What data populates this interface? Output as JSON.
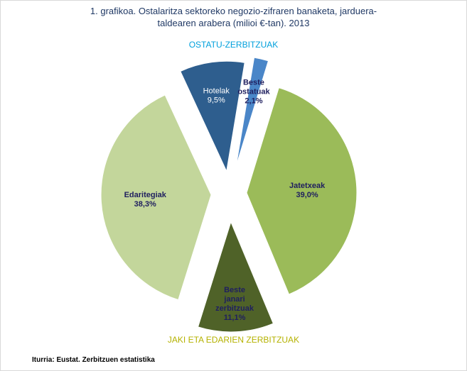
{
  "title_line1": "1. grafikoa. Ostalaritza sektoreko negozio-zifraren banaketa, jarduera-",
  "title_line2": "taldearen arabera (milioi €-tan). 2013",
  "group_top": "OSTATU-ZERBITZUAK",
  "group_bottom": "JAKI ETA EDARIEN ZERBITZUAK",
  "source": "Iturria: Eustat. Zerbitzuen estatistika",
  "colors": {
    "jatetxeak": "#9bbb59",
    "beste_janari": "#4f6228",
    "edaritegiak": "#c3d69b",
    "hotelak": "#2e5e8e",
    "beste_ostatuak": "#4a86c8",
    "label_dark": "#1f1f5f",
    "label_light": "#ffffff"
  },
  "chart_data": {
    "type": "pie",
    "title": "1. grafikoa. Ostalaritza sektoreko negozio-zifraren banaketa, jarduera-taldearen arabera (milioi €-tan). 2013",
    "groups": [
      "OSTATU-ZERBITZUAK",
      "JAKI ETA EDARIEN ZERBITZUAK"
    ],
    "slices": [
      {
        "lines": [
          "Jatetxeak",
          "39,0%"
        ],
        "value": 39.0,
        "color": "#9bbb59"
      },
      {
        "lines": [
          "Beste",
          "janari",
          "zerbitzuak",
          "11,1%"
        ],
        "value": 11.1,
        "color": "#4f6228"
      },
      {
        "lines": [
          "Edaritegiak",
          "38,3%"
        ],
        "value": 38.3,
        "color": "#c3d69b"
      },
      {
        "lines": [
          "Hotelak",
          "9,5%"
        ],
        "value": 9.5,
        "color": "#2e5e8e"
      },
      {
        "lines": [
          "Beste",
          "ostatuak",
          "2,1%"
        ],
        "value": 2.1,
        "color": "#4a86c8"
      }
    ]
  }
}
